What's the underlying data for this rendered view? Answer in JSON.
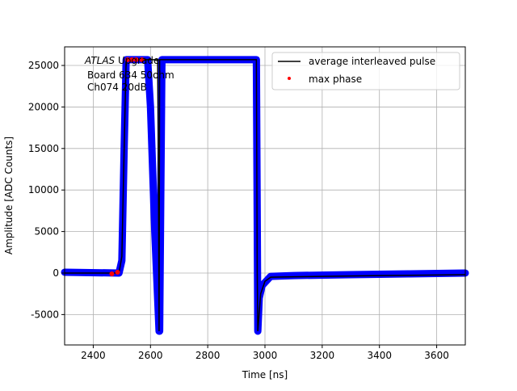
{
  "chart_data": {
    "type": "line",
    "xlabel": "Time [ns]",
    "ylabel": "Amplitude [ADC Counts]",
    "xlim": [
      2300,
      3700
    ],
    "ylim": [
      -8660,
      27240
    ],
    "xticks": [
      2400,
      2600,
      2800,
      3000,
      3200,
      3400,
      3600
    ],
    "yticks": [
      -5000,
      0,
      5000,
      10000,
      15000,
      20000,
      25000
    ],
    "grid": true,
    "legend_position": "top-right",
    "annotation": {
      "italic": "ATLAS",
      "rest": " Upgrade",
      "line2": "Board 634 50ohm",
      "line3": "Ch074 20dB"
    },
    "series": [
      {
        "kind": "scatter",
        "color": "#0000ff",
        "x": [
          2300,
          2490,
          2500,
          2508,
          2515,
          2590,
          2600,
          2615,
          2630,
          2632,
          2640,
          2970,
          2975,
          2980,
          2990,
          3020,
          3100,
          3300,
          3500,
          3700
        ],
        "y": [
          100,
          0,
          1500,
          15000,
          25700,
          25700,
          20000,
          5000,
          -7000,
          -7000,
          25700,
          25700,
          -7000,
          -3000,
          -1500,
          -400,
          -300,
          -200,
          -100,
          0
        ]
      },
      {
        "name": "average interleaved pulse",
        "kind": "line",
        "color": "#000000",
        "x": [
          2300,
          2490,
          2500,
          2508,
          2515,
          2625,
          2628,
          2630,
          2632,
          2970,
          2973,
          2975,
          2985,
          3000,
          3020,
          3100,
          3400,
          3700
        ],
        "y": [
          0,
          0,
          2000,
          15000,
          25700,
          25700,
          10000,
          -7000,
          25700,
          25700,
          0,
          -7000,
          -2500,
          -1000,
          -500,
          -450,
          -300,
          -200
        ]
      },
      {
        "name": "max phase",
        "kind": "scatter",
        "color": "#ff0000",
        "x": [
          2465,
          2485,
          2520,
          2535,
          2550,
          2570
        ],
        "y": [
          -100,
          100,
          25700,
          25700,
          25700,
          25700
        ]
      }
    ]
  }
}
